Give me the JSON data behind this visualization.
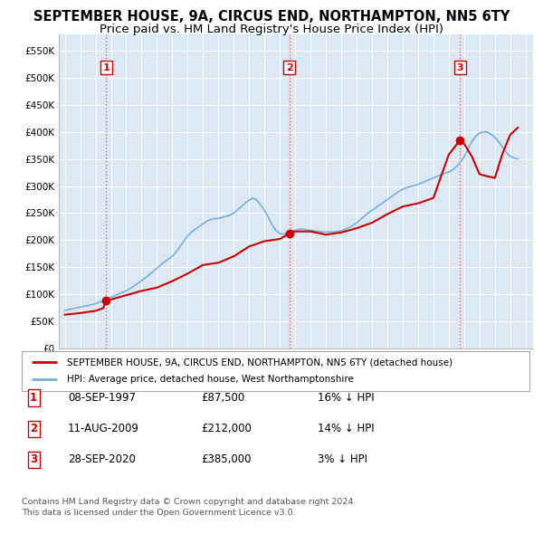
{
  "title": "SEPTEMBER HOUSE, 9A, CIRCUS END, NORTHAMPTON, NN5 6TY",
  "subtitle": "Price paid vs. HM Land Registry's House Price Index (HPI)",
  "title_fontsize": 10.5,
  "subtitle_fontsize": 9.5,
  "background_color": "#ffffff",
  "plot_bg_color": "#dce9f5",
  "grid_color": "#ffffff",
  "ylabel_vals": [
    0,
    50000,
    100000,
    150000,
    200000,
    250000,
    300000,
    350000,
    400000,
    450000,
    500000,
    550000
  ],
  "ylabel_labels": [
    "£0",
    "£50K",
    "£100K",
    "£150K",
    "£200K",
    "£250K",
    "£300K",
    "£350K",
    "£400K",
    "£450K",
    "£500K",
    "£550K"
  ],
  "xlim_start": 1994.6,
  "xlim_end": 2025.5,
  "ylim": [
    0,
    580000
  ],
  "sale_dates": [
    1997.69,
    2009.61,
    2020.74
  ],
  "sale_prices": [
    87500,
    212000,
    385000
  ],
  "sale_labels": [
    "1",
    "2",
    "3"
  ],
  "vline_color": "#ff5555",
  "marker_color": "#cc0000",
  "red_line_color": "#cc0000",
  "blue_line_color": "#7aaddd",
  "legend_items": [
    "SEPTEMBER HOUSE, 9A, CIRCUS END, NORTHAMPTON, NN5 6TY (detached house)",
    "HPI: Average price, detached house, West Northamptonshire"
  ],
  "table_rows": [
    [
      "1",
      "08-SEP-1997",
      "£87,500",
      "16% ↓ HPI"
    ],
    [
      "2",
      "11-AUG-2009",
      "£212,000",
      "14% ↓ HPI"
    ],
    [
      "3",
      "28-SEP-2020",
      "£385,000",
      "3% ↓ HPI"
    ]
  ],
  "footer_text": "Contains HM Land Registry data © Crown copyright and database right 2024.\nThis data is licensed under the Open Government Licence v3.0.",
  "hpi_years": [
    1995.0,
    1995.08,
    1995.17,
    1995.25,
    1995.33,
    1995.42,
    1995.5,
    1995.58,
    1995.67,
    1995.75,
    1995.83,
    1995.92,
    1996.0,
    1996.08,
    1996.17,
    1996.25,
    1996.33,
    1996.42,
    1996.5,
    1996.58,
    1996.67,
    1996.75,
    1996.83,
    1996.92,
    1997.0,
    1997.17,
    1997.33,
    1997.5,
    1997.67,
    1997.83,
    1998.0,
    1998.25,
    1998.5,
    1998.75,
    1999.0,
    1999.25,
    1999.5,
    1999.75,
    2000.0,
    2000.25,
    2000.5,
    2000.75,
    2001.0,
    2001.25,
    2001.5,
    2001.75,
    2002.0,
    2002.25,
    2002.5,
    2002.75,
    2003.0,
    2003.25,
    2003.5,
    2003.75,
    2004.0,
    2004.25,
    2004.5,
    2004.75,
    2005.0,
    2005.25,
    2005.5,
    2005.75,
    2006.0,
    2006.25,
    2006.5,
    2006.75,
    2007.0,
    2007.25,
    2007.5,
    2007.75,
    2008.0,
    2008.25,
    2008.5,
    2008.75,
    2009.0,
    2009.25,
    2009.5,
    2009.75,
    2010.0,
    2010.25,
    2010.5,
    2010.75,
    2011.0,
    2011.25,
    2011.5,
    2011.75,
    2012.0,
    2012.25,
    2012.5,
    2012.75,
    2013.0,
    2013.25,
    2013.5,
    2013.75,
    2014.0,
    2014.25,
    2014.5,
    2014.75,
    2015.0,
    2015.25,
    2015.5,
    2015.75,
    2016.0,
    2016.25,
    2016.5,
    2016.75,
    2017.0,
    2017.25,
    2017.5,
    2017.75,
    2018.0,
    2018.25,
    2018.5,
    2018.75,
    2019.0,
    2019.25,
    2019.5,
    2019.75,
    2020.0,
    2020.25,
    2020.5,
    2020.75,
    2021.0,
    2021.25,
    2021.5,
    2021.75,
    2022.0,
    2022.25,
    2022.5,
    2022.75,
    2023.0,
    2023.25,
    2023.5,
    2023.75,
    2024.0,
    2024.25,
    2024.5
  ],
  "hpi_values": [
    70000,
    70500,
    71000,
    71500,
    72000,
    72500,
    73000,
    73500,
    74000,
    74500,
    75000,
    75500,
    76000,
    76500,
    77000,
    77500,
    78000,
    78500,
    79000,
    79500,
    80000,
    80500,
    81000,
    81500,
    82000,
    84000,
    86000,
    88000,
    90000,
    92000,
    94000,
    97000,
    100000,
    103000,
    106000,
    110000,
    115000,
    120000,
    125000,
    130000,
    136000,
    142000,
    148000,
    154000,
    160000,
    165000,
    170000,
    178000,
    188000,
    198000,
    208000,
    215000,
    220000,
    225000,
    230000,
    235000,
    238000,
    240000,
    240000,
    242000,
    244000,
    246000,
    250000,
    256000,
    262000,
    268000,
    274000,
    278000,
    274000,
    265000,
    255000,
    242000,
    228000,
    218000,
    212000,
    211000,
    213000,
    216000,
    218000,
    220000,
    220000,
    219000,
    218000,
    217000,
    216000,
    215000,
    215000,
    215000,
    215000,
    216000,
    217000,
    220000,
    223000,
    227000,
    232000,
    238000,
    244000,
    250000,
    255000,
    260000,
    265000,
    270000,
    275000,
    280000,
    285000,
    290000,
    294000,
    297000,
    299000,
    301000,
    303000,
    306000,
    309000,
    312000,
    315000,
    318000,
    321000,
    324000,
    326000,
    330000,
    336000,
    344000,
    354000,
    368000,
    382000,
    392000,
    398000,
    400000,
    400000,
    396000,
    390000,
    382000,
    372000,
    362000,
    355000,
    352000,
    350000
  ],
  "red_years": [
    1995.0,
    1995.5,
    1996.0,
    1996.5,
    1997.0,
    1997.5,
    1997.69,
    1998.0,
    1999.0,
    2000.0,
    2001.0,
    2002.0,
    2003.0,
    2004.0,
    2005.0,
    2006.0,
    2007.0,
    2008.0,
    2009.0,
    2009.61,
    2010.0,
    2011.0,
    2012.0,
    2013.0,
    2014.0,
    2015.0,
    2016.0,
    2017.0,
    2018.0,
    2019.0,
    2020.0,
    2020.74,
    2021.0,
    2021.5,
    2022.0,
    2022.5,
    2023.0,
    2023.5,
    2024.0,
    2024.5
  ],
  "red_values": [
    62000,
    63500,
    65000,
    67000,
    69000,
    74000,
    87500,
    90000,
    98000,
    106000,
    112000,
    124000,
    138000,
    154000,
    158000,
    170000,
    188000,
    198000,
    202000,
    212000,
    216000,
    216000,
    210000,
    214000,
    222000,
    232000,
    248000,
    262000,
    268000,
    278000,
    358000,
    385000,
    378000,
    355000,
    322000,
    318000,
    315000,
    360000,
    395000,
    408000
  ]
}
